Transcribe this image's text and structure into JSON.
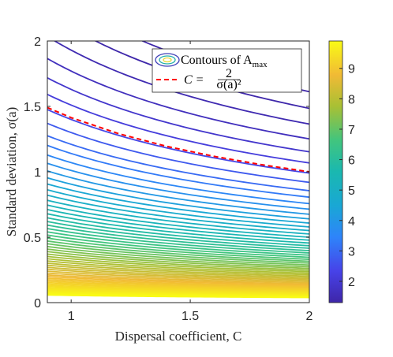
{
  "chart_data": {
    "type": "contour",
    "xlabel": "Dispersal coefficient, C",
    "ylabel": "Standard deviation, σ(a)",
    "xlim": [
      0.9,
      2.0
    ],
    "ylim": [
      0,
      2.0
    ],
    "x_ticks": [
      "1",
      "1.5",
      "2"
    ],
    "x_tick_values": [
      1,
      1.5,
      2
    ],
    "y_ticks": [
      "0",
      "0.5",
      "1",
      "1.5",
      "2"
    ],
    "y_tick_values": [
      0,
      0.5,
      1,
      1.5,
      2
    ],
    "legend": {
      "placement": "top-right",
      "entries": [
        {
          "label": "Contours of A_max",
          "style": "contour"
        },
        {
          "label": "C = 2/σ(a)^2",
          "style": "dashed",
          "color": "#ff0000"
        }
      ]
    },
    "colorbar": {
      "ticks": [
        "2",
        "3",
        "4",
        "5",
        "6",
        "7",
        "8",
        "9"
      ],
      "tick_values": [
        2,
        3,
        4,
        5,
        6,
        7,
        8,
        9
      ],
      "range": [
        1.3,
        9.9
      ],
      "colormap": "parula"
    },
    "contour_model": "sigma = k / C^0.5",
    "contour_k_values": [
      2.28,
      2.1,
      1.93,
      1.77,
      1.63,
      1.51,
      1.4,
      1.3,
      1.21,
      1.14,
      1.07,
      1.01,
      0.955,
      0.905,
      0.86,
      0.818,
      0.779,
      0.742,
      0.707,
      0.675,
      0.644,
      0.615,
      0.588,
      0.562,
      0.537,
      0.513,
      0.49,
      0.468,
      0.447,
      0.427,
      0.407,
      0.388,
      0.37,
      0.352,
      0.335,
      0.318,
      0.302,
      0.286,
      0.271,
      0.256,
      0.242,
      0.228,
      0.214,
      0.201,
      0.189,
      0.177,
      0.166,
      0.155,
      0.145,
      0.135,
      0.125,
      0.116,
      0.107,
      0.099,
      0.091,
      0.083,
      0.076,
      0.069,
      0.062,
      0.055
    ],
    "dashed_line": {
      "x": [
        0.9,
        1.0,
        1.2,
        1.4,
        1.6,
        1.8,
        2.0
      ],
      "y": [
        1.491,
        1.414,
        1.291,
        1.195,
        1.118,
        1.054,
        1.0
      ]
    }
  },
  "text": {
    "xlabel": "Dispersal coefficient, C",
    "ylabel": "Standard deviation, σ(a)",
    "legend1": "Contours of A",
    "legend1_sub": "max",
    "legend2_lhs": "C =",
    "legend2_num": "2",
    "legend2_den": "σ(a)²"
  }
}
